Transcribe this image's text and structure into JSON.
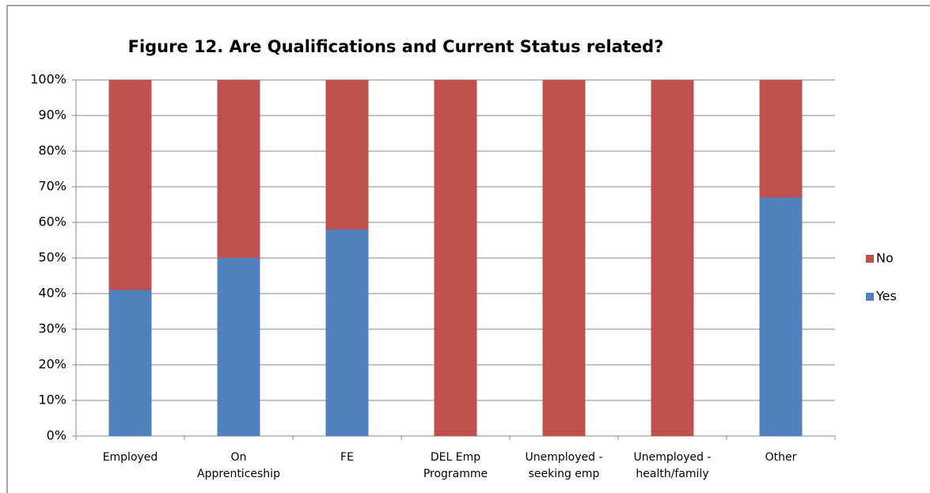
{
  "chart_data": {
    "type": "stacked_bar",
    "title": "Figure 12. Are Qualifications and Current Status related?",
    "categories": [
      "Employed",
      "On\nApprenticeship",
      "FE",
      "DEL Emp\nProgramme",
      "Unemployed -\nseeking emp",
      "Unemployed -\nhealth/family",
      "Other"
    ],
    "series": [
      {
        "name": "Yes",
        "color": "#4f81bd",
        "values": [
          41,
          50,
          58,
          0,
          0,
          0,
          67
        ]
      },
      {
        "name": "No",
        "color": "#c0504d",
        "values": [
          59,
          50,
          42,
          100,
          100,
          100,
          33
        ]
      }
    ],
    "ylim": [
      0,
      100
    ],
    "yticks": [
      {
        "value": 0,
        "label": "0%"
      },
      {
        "value": 10,
        "label": "10%"
      },
      {
        "value": 20,
        "label": "20%"
      },
      {
        "value": 30,
        "label": "30%"
      },
      {
        "value": 40,
        "label": "40%"
      },
      {
        "value": 50,
        "label": "50%"
      },
      {
        "value": 60,
        "label": "60%"
      },
      {
        "value": 70,
        "label": "70%"
      },
      {
        "value": 80,
        "label": "80%"
      },
      {
        "value": 90,
        "label": "90%"
      },
      {
        "value": 100,
        "label": "100%"
      }
    ],
    "grid": true,
    "legend": "right"
  }
}
